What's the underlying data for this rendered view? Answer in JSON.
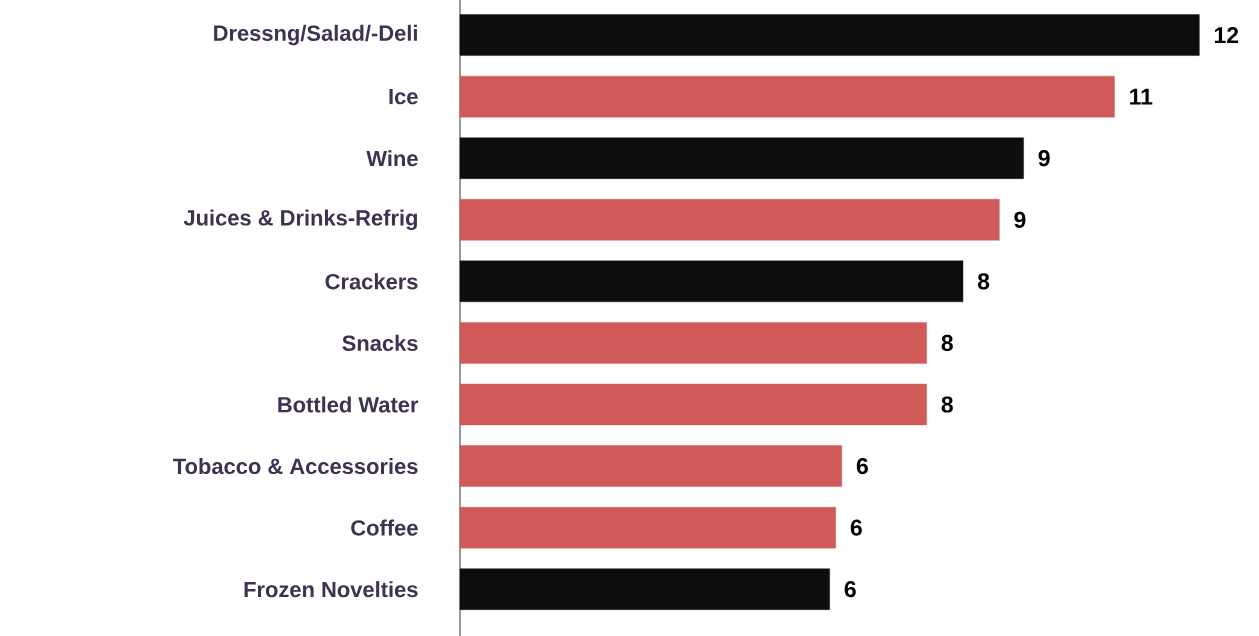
{
  "chart_data": {
    "type": "bar",
    "orientation": "horizontal",
    "categories": [
      "Dressng/Salad/-Deli",
      "Ice",
      "Wine",
      "Juices & Drinks-Refrig",
      "Crackers",
      "Snacks",
      "Bottled Water",
      "Tobacco & Accessories",
      "Coffee",
      "Frozen Novelties"
    ],
    "values": [
      12.2,
      10.8,
      9.3,
      8.9,
      8.3,
      7.7,
      7.7,
      6.3,
      6.2,
      6.1
    ],
    "colors": [
      "#0d0d0d",
      "#d05a58",
      "#0d0d0d",
      "#d05a58",
      "#0d0d0d",
      "#d05a58",
      "#d05a58",
      "#d05a58",
      "#d05a58",
      "#0d0d0d"
    ],
    "value_labels": [
      "12",
      "11",
      "9",
      "9",
      "8",
      "8",
      "8",
      "6",
      "6",
      "6"
    ]
  }
}
